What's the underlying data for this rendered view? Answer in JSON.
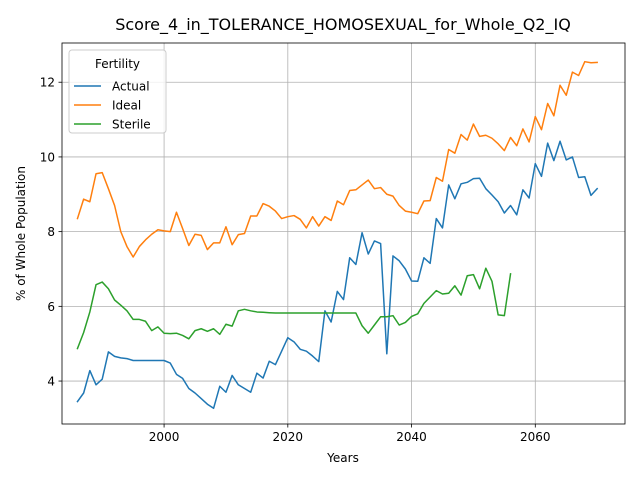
{
  "chart_data": {
    "type": "line",
    "title": "Score_4_in_TOLERANCE_HOMOSEXUAL_for_Whole_Q2_IQ",
    "xlabel": "Years",
    "ylabel": "% of Whole Population",
    "xlim": [
      1983.5,
      2074.5
    ],
    "ylim": [
      2.85,
      13.05
    ],
    "xticks": [
      2000,
      2020,
      2040,
      2060
    ],
    "yticks": [
      4,
      6,
      8,
      10,
      12
    ],
    "grid": true,
    "legend": {
      "title": "Fertility",
      "position": "upper-left"
    },
    "colors": {
      "Actual": "#1f77b4",
      "Ideal": "#ff7f0e",
      "Sterile": "#2ca02c"
    },
    "series": [
      {
        "name": "Actual",
        "x": [
          1986,
          1987,
          1988,
          1989,
          1990,
          1991,
          1992,
          1993,
          1994,
          1995,
          1996,
          1997,
          1998,
          1999,
          2000,
          2001,
          2002,
          2003,
          2004,
          2005,
          2006,
          2007,
          2008,
          2009,
          2010,
          2011,
          2012,
          2013,
          2014,
          2015,
          2016,
          2017,
          2018,
          2019,
          2020,
          2021,
          2022,
          2023,
          2024,
          2025,
          2026,
          2027,
          2028,
          2029,
          2030,
          2031,
          2032,
          2033,
          2034,
          2035,
          2036,
          2037,
          2038,
          2039,
          2040,
          2041,
          2042,
          2043,
          2044,
          2045,
          2046,
          2047,
          2048,
          2049,
          2050,
          2051,
          2052,
          2053,
          2054,
          2055,
          2056,
          2057,
          2058,
          2059,
          2060,
          2061,
          2062,
          2063,
          2064,
          2065,
          2066,
          2067,
          2068,
          2069,
          2070
        ],
        "y": [
          3.45,
          3.68,
          4.28,
          3.9,
          4.05,
          4.78,
          4.66,
          4.62,
          4.6,
          4.55,
          4.55,
          4.55,
          4.55,
          4.55,
          4.55,
          4.48,
          4.18,
          4.07,
          3.8,
          3.68,
          3.53,
          3.38,
          3.27,
          3.86,
          3.7,
          4.15,
          3.9,
          3.8,
          3.7,
          4.21,
          4.08,
          4.53,
          4.44,
          4.8,
          5.16,
          5.05,
          4.85,
          4.8,
          4.67,
          4.52,
          5.88,
          5.58,
          6.4,
          6.18,
          7.3,
          7.12,
          7.97,
          7.4,
          7.75,
          7.68,
          4.73,
          7.35,
          7.22,
          7.0,
          6.68,
          6.67,
          7.3,
          7.15,
          8.35,
          8.1,
          9.25,
          8.88,
          9.28,
          9.32,
          9.42,
          9.43,
          9.15,
          8.98,
          8.8,
          8.5,
          8.7,
          8.45,
          9.12,
          8.9,
          9.82,
          9.48,
          10.37,
          9.9,
          10.42,
          9.92,
          10.0,
          9.45,
          9.47,
          8.97,
          9.15
        ]
      },
      {
        "name": "Ideal",
        "x": [
          1986,
          1987,
          1988,
          1989,
          1990,
          1991,
          1992,
          1993,
          1994,
          1995,
          1996,
          1997,
          1998,
          1999,
          2000,
          2001,
          2002,
          2003,
          2004,
          2005,
          2006,
          2007,
          2008,
          2009,
          2010,
          2011,
          2012,
          2013,
          2014,
          2015,
          2016,
          2017,
          2018,
          2019,
          2020,
          2021,
          2022,
          2023,
          2024,
          2025,
          2026,
          2027,
          2028,
          2029,
          2030,
          2031,
          2032,
          2033,
          2034,
          2035,
          2036,
          2037,
          2038,
          2039,
          2040,
          2041,
          2042,
          2043,
          2044,
          2045,
          2046,
          2047,
          2048,
          2049,
          2050,
          2051,
          2052,
          2053,
          2054,
          2055,
          2056,
          2057,
          2058,
          2059,
          2060,
          2061,
          2062,
          2063,
          2064,
          2065,
          2066,
          2067,
          2068,
          2069,
          2070
        ],
        "y": [
          8.35,
          8.87,
          8.8,
          9.55,
          9.58,
          9.15,
          8.7,
          8.0,
          7.6,
          7.32,
          7.6,
          7.78,
          7.93,
          8.05,
          8.02,
          8.0,
          8.52,
          8.08,
          7.63,
          7.93,
          7.9,
          7.52,
          7.7,
          7.7,
          8.13,
          7.65,
          7.92,
          7.95,
          8.42,
          8.42,
          8.75,
          8.68,
          8.55,
          8.35,
          8.4,
          8.43,
          8.33,
          8.1,
          8.4,
          8.15,
          8.4,
          8.3,
          8.82,
          8.72,
          9.1,
          9.12,
          9.25,
          9.38,
          9.15,
          9.18,
          9.0,
          8.95,
          8.7,
          8.55,
          8.52,
          8.48,
          8.82,
          8.83,
          9.45,
          9.35,
          10.2,
          10.1,
          10.6,
          10.45,
          10.88,
          10.55,
          10.58,
          10.5,
          10.35,
          10.17,
          10.52,
          10.3,
          10.75,
          10.4,
          11.08,
          10.73,
          11.43,
          11.1,
          11.92,
          11.65,
          12.27,
          12.18,
          12.55,
          12.52,
          12.53
        ]
      },
      {
        "name": "Sterile",
        "x": [
          1986,
          1987,
          1988,
          1989,
          1990,
          1991,
          1992,
          1993,
          1994,
          1995,
          1996,
          1997,
          1998,
          1999,
          2000,
          2001,
          2002,
          2003,
          2004,
          2005,
          2006,
          2007,
          2008,
          2009,
          2010,
          2011,
          2012,
          2013,
          2014,
          2015,
          2016,
          2017,
          2018,
          2019,
          2020,
          2021,
          2022,
          2023,
          2024,
          2025,
          2026,
          2027,
          2028,
          2029,
          2030,
          2031,
          2032,
          2033,
          2034,
          2035,
          2036,
          2037,
          2038,
          2039,
          2040,
          2041,
          2042,
          2043,
          2044,
          2045,
          2046,
          2047,
          2048,
          2049,
          2050,
          2051,
          2052,
          2053,
          2054,
          2055,
          2056
        ],
        "y": [
          4.87,
          5.3,
          5.85,
          6.58,
          6.65,
          6.47,
          6.17,
          6.03,
          5.88,
          5.65,
          5.65,
          5.6,
          5.35,
          5.45,
          5.28,
          5.27,
          5.28,
          5.22,
          5.13,
          5.35,
          5.4,
          5.33,
          5.4,
          5.25,
          5.52,
          5.47,
          5.88,
          5.92,
          5.88,
          5.85,
          5.84,
          5.83,
          5.82,
          5.82,
          5.82,
          5.82,
          5.82,
          5.82,
          5.82,
          5.82,
          5.82,
          5.82,
          5.82,
          5.82,
          5.82,
          5.82,
          5.48,
          5.28,
          5.5,
          5.72,
          5.72,
          5.75,
          5.5,
          5.57,
          5.73,
          5.8,
          6.08,
          6.25,
          6.42,
          6.33,
          6.35,
          6.55,
          6.3,
          6.82,
          6.85,
          6.47,
          7.02,
          6.67,
          5.77,
          5.75,
          6.87
        ]
      }
    ]
  }
}
